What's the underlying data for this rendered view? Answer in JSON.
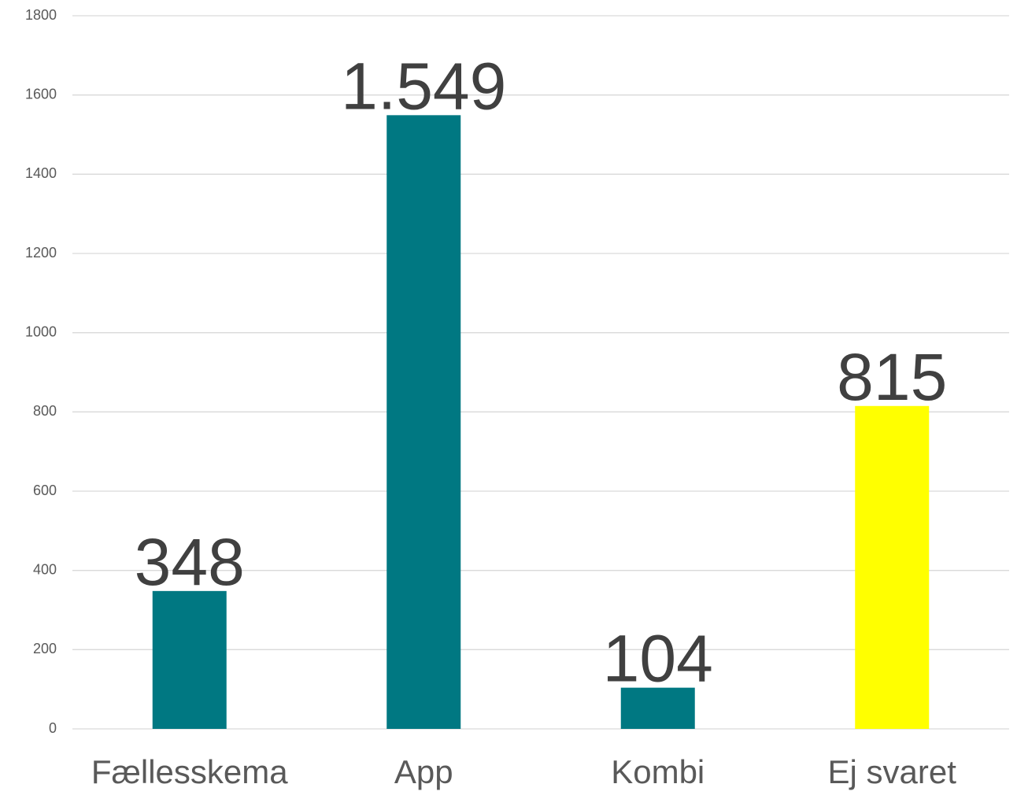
{
  "chart_data": {
    "type": "bar",
    "categories": [
      "Fællesskema",
      "App",
      "Kombi",
      "Ej svaret"
    ],
    "values": [
      348,
      1549,
      104,
      815
    ],
    "value_labels": [
      "348",
      "1.549",
      "104",
      "815"
    ],
    "colors": [
      "#007882",
      "#007882",
      "#007882",
      "#ffff00"
    ],
    "ylim": [
      0,
      1800
    ],
    "yticks": [
      0,
      200,
      400,
      600,
      800,
      1000,
      1200,
      1400,
      1600,
      1800
    ],
    "grid": true
  }
}
